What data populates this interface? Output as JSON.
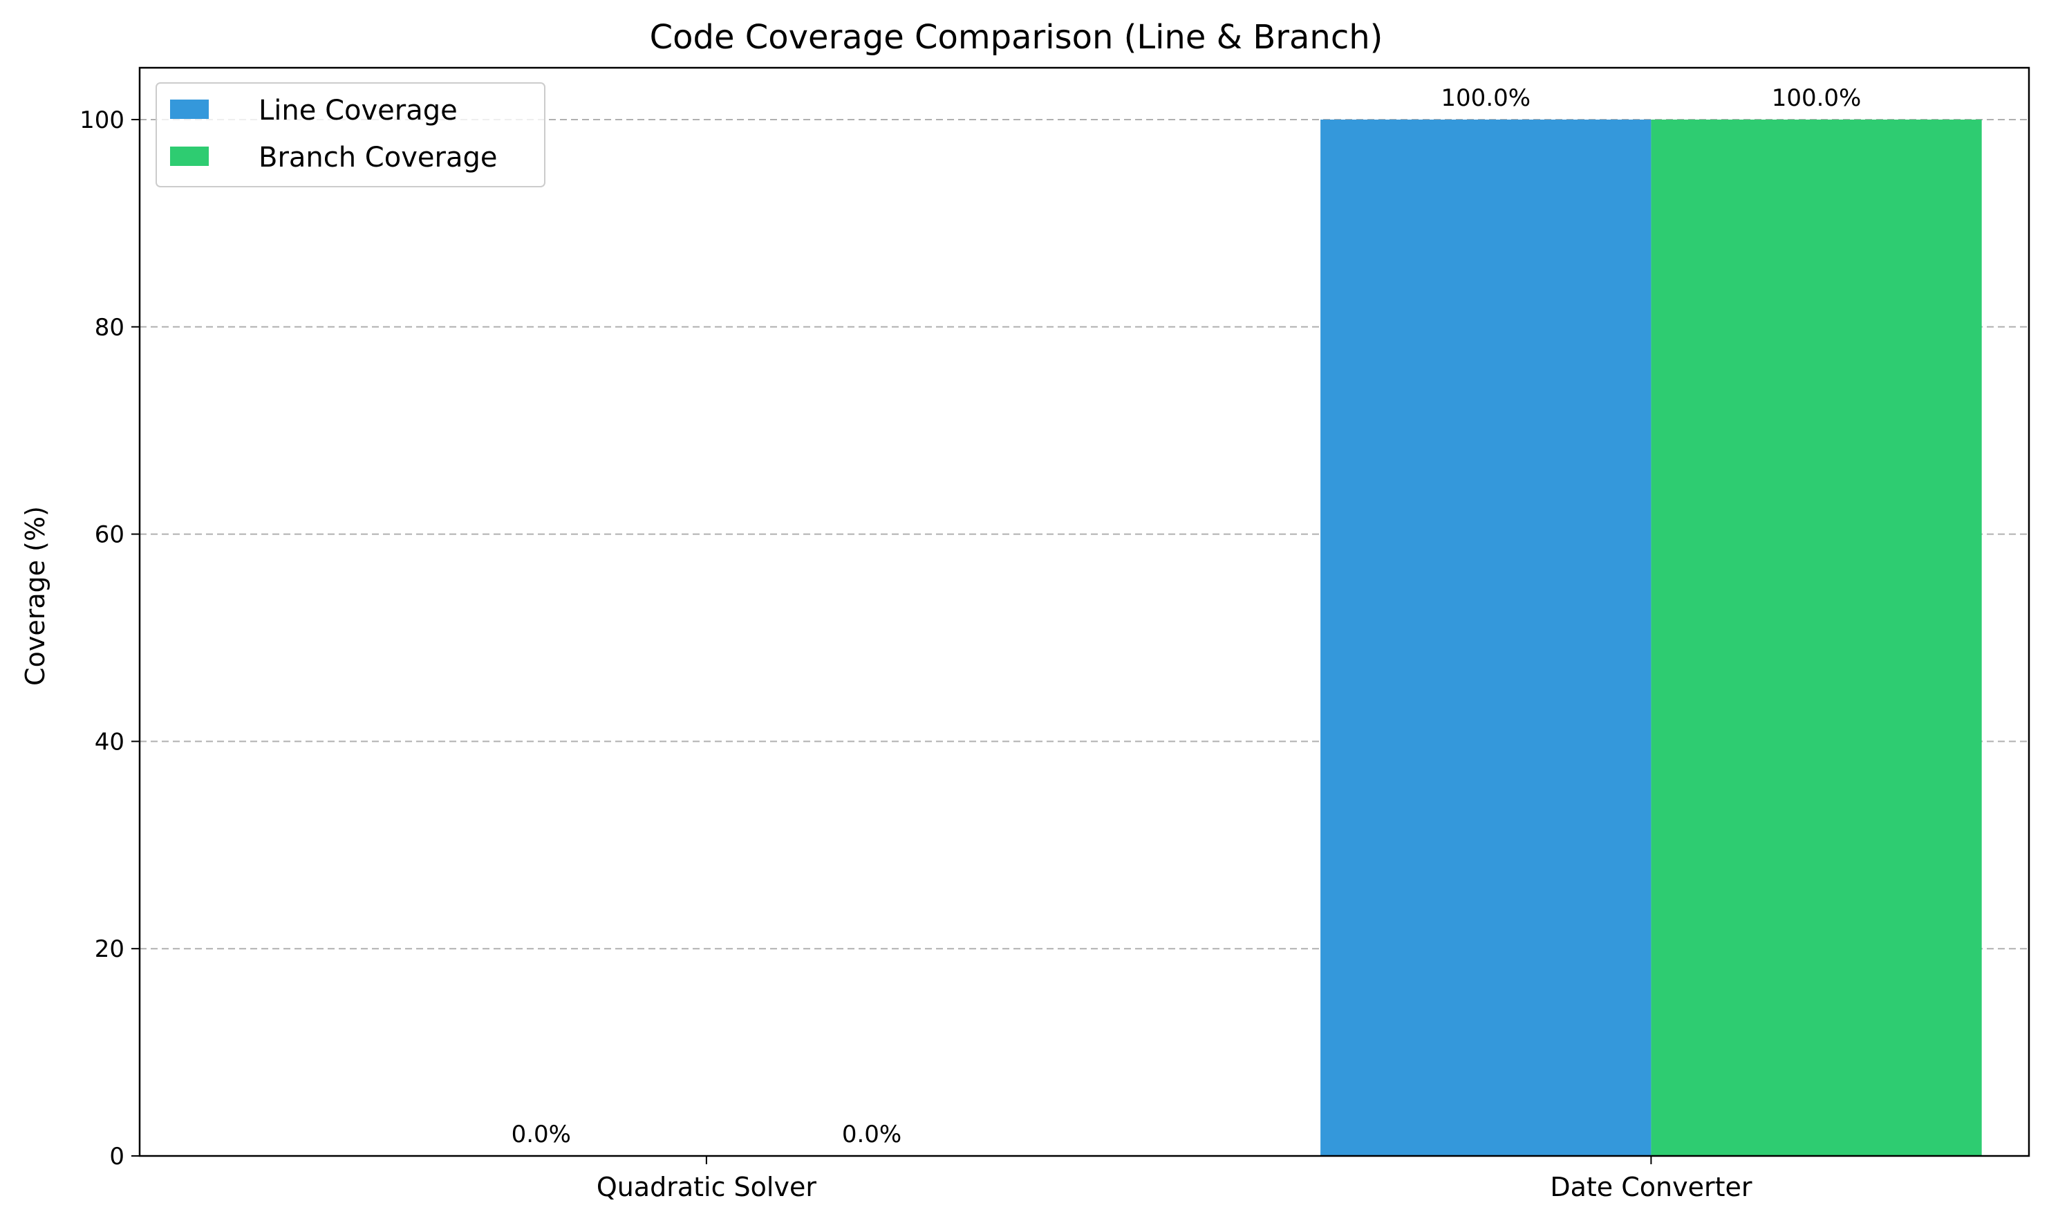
{
  "chart_data": {
    "type": "bar",
    "title": "Code Coverage Comparison (Line & Branch)",
    "xlabel": "",
    "ylabel": "Coverage (%)",
    "categories": [
      "Quadratic Solver",
      "Date Converter"
    ],
    "series": [
      {
        "name": "Line Coverage",
        "values": [
          0.0,
          100.0
        ],
        "color": "#3498db",
        "labels": [
          "0.0%",
          "100.0%"
        ]
      },
      {
        "name": "Branch Coverage",
        "values": [
          0.0,
          100.0
        ],
        "color": "#2ecc71",
        "labels": [
          "0.0%",
          "100.0%"
        ]
      }
    ],
    "ylim": [
      0,
      105
    ],
    "yticks": [
      0,
      20,
      40,
      60,
      80,
      100
    ],
    "ytick_labels": [
      "0",
      "20",
      "40",
      "60",
      "80",
      "100"
    ],
    "grid": "y-dashed",
    "legend_position": "top-left"
  }
}
